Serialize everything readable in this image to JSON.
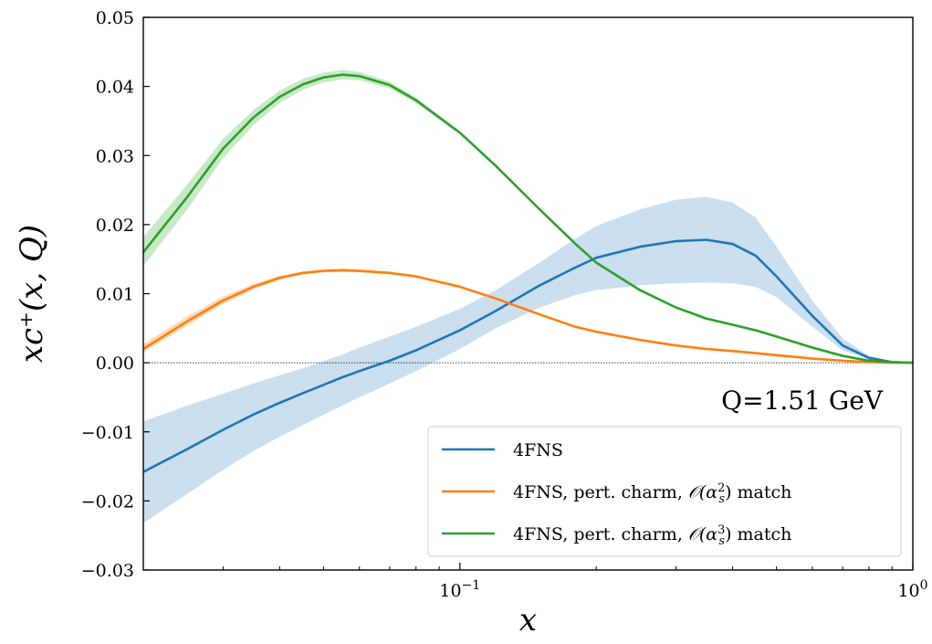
{
  "chart_data": {
    "type": "line",
    "xlabel": "x",
    "ylabel": "xc⁺(x, Q)",
    "x_scale": "log",
    "xlim": [
      0.02,
      1.0
    ],
    "ylim": [
      -0.03,
      0.05
    ],
    "y_ticks": [
      -0.03,
      -0.02,
      -0.01,
      0.0,
      0.01,
      0.02,
      0.03,
      0.04,
      0.05
    ],
    "y_tick_labels": [
      "−0.03",
      "−0.02",
      "−0.01",
      "0.00",
      "0.01",
      "0.02",
      "0.03",
      "0.04",
      "0.05"
    ],
    "x_ticks": [
      0.1,
      1.0
    ],
    "x_tick_labels": [
      {
        "base": "10",
        "exp": "−1"
      },
      {
        "base": "10",
        "exp": "0"
      }
    ],
    "annotation": "Q=1.51 GeV",
    "zero_line": true,
    "legend_position": "lower-right",
    "x": [
      0.02,
      0.025,
      0.03,
      0.035,
      0.04,
      0.045,
      0.05,
      0.055,
      0.06,
      0.07,
      0.08,
      0.1,
      0.12,
      0.15,
      0.18,
      0.2,
      0.25,
      0.3,
      0.35,
      0.4,
      0.45,
      0.5,
      0.6,
      0.7,
      0.8,
      0.9,
      1.0
    ],
    "series": [
      {
        "name": "4FNS",
        "color": "#1f77b4",
        "band_color": "#c5dbed",
        "values": [
          -0.0158,
          -0.0125,
          -0.0097,
          -0.0075,
          -0.0058,
          -0.0044,
          -0.0032,
          -0.0021,
          -0.0012,
          0.0003,
          0.0018,
          0.0047,
          0.0075,
          0.0112,
          0.0138,
          0.0152,
          0.0168,
          0.0176,
          0.0178,
          0.0172,
          0.0155,
          0.0125,
          0.0068,
          0.0025,
          0.0007,
          0.0001,
          0.0
        ],
        "lower": [
          -0.0232,
          -0.019,
          -0.0155,
          -0.0128,
          -0.0107,
          -0.009,
          -0.0075,
          -0.0062,
          -0.005,
          -0.003,
          -0.0012,
          0.002,
          0.005,
          0.008,
          0.0098,
          0.0105,
          0.0112,
          0.0115,
          0.0116,
          0.0115,
          0.011,
          0.0095,
          0.0052,
          0.0018,
          0.0005,
          0.0001,
          0.0
        ],
        "upper": [
          -0.0085,
          -0.0062,
          -0.0045,
          -0.003,
          -0.0018,
          -0.0008,
          0.0002,
          0.0012,
          0.0022,
          0.0038,
          0.0052,
          0.0078,
          0.0105,
          0.0145,
          0.018,
          0.0198,
          0.0222,
          0.0236,
          0.024,
          0.0232,
          0.021,
          0.0168,
          0.009,
          0.0035,
          0.001,
          0.0002,
          0.0
        ]
      },
      {
        "name": "4FNS, pert. charm, 𝒪(αₛ²) match",
        "legend_main": "4FNS, pert. charm, ",
        "legend_order": "2",
        "legend_suffix": " match",
        "color": "#ff7f0e",
        "band_color": "#ffd3ae",
        "values": [
          0.002,
          0.006,
          0.009,
          0.011,
          0.0123,
          0.013,
          0.0133,
          0.0134,
          0.0133,
          0.013,
          0.0125,
          0.011,
          0.0093,
          0.007,
          0.0052,
          0.0045,
          0.0033,
          0.0025,
          0.002,
          0.0017,
          0.0014,
          0.0011,
          0.0006,
          0.0003,
          0.0001,
          0.0,
          0.0
        ],
        "lower": [
          0.0015,
          0.0054,
          0.0085,
          0.0106,
          0.012,
          0.0128,
          0.0131,
          0.0132,
          0.0131,
          0.0128,
          0.0124,
          0.0109,
          0.0092,
          0.0069,
          0.0051,
          0.0044,
          0.0032,
          0.0024,
          0.0019,
          0.0016,
          0.0013,
          0.001,
          0.0005,
          0.0002,
          0.0001,
          0.0,
          0.0
        ],
        "upper": [
          0.0027,
          0.0067,
          0.0096,
          0.0114,
          0.0126,
          0.0132,
          0.0135,
          0.0136,
          0.0135,
          0.0132,
          0.0126,
          0.0111,
          0.0094,
          0.0071,
          0.0053,
          0.0046,
          0.0034,
          0.0026,
          0.0021,
          0.0018,
          0.0015,
          0.0012,
          0.0007,
          0.0004,
          0.0002,
          0.0,
          0.0
        ]
      },
      {
        "name": "4FNS, pert. charm, 𝒪(αₛ³) match",
        "legend_main": "4FNS, pert. charm, ",
        "legend_order": "3",
        "legend_suffix": " match",
        "color": "#2ca02c",
        "band_color": "#c3e6c1",
        "values": [
          0.016,
          0.024,
          0.031,
          0.0355,
          0.0385,
          0.0403,
          0.0413,
          0.0417,
          0.0415,
          0.0402,
          0.038,
          0.0333,
          0.0285,
          0.0222,
          0.0172,
          0.0145,
          0.0105,
          0.008,
          0.0064,
          0.0055,
          0.0047,
          0.0038,
          0.0022,
          0.001,
          0.0003,
          0.0001,
          0.0
        ],
        "lower": [
          0.014,
          0.0222,
          0.0296,
          0.0344,
          0.0376,
          0.0395,
          0.0406,
          0.041,
          0.0409,
          0.0397,
          0.0376,
          0.0331,
          0.0283,
          0.0221,
          0.0171,
          0.0144,
          0.0104,
          0.0079,
          0.0063,
          0.0054,
          0.0046,
          0.0037,
          0.0021,
          0.0009,
          0.0003,
          0.0001,
          0.0
        ],
        "upper": [
          0.0182,
          0.0258,
          0.0324,
          0.0366,
          0.0394,
          0.0411,
          0.042,
          0.0424,
          0.0421,
          0.0407,
          0.0384,
          0.0335,
          0.0287,
          0.0223,
          0.0173,
          0.0146,
          0.0106,
          0.0081,
          0.0065,
          0.0056,
          0.0048,
          0.0039,
          0.0023,
          0.0011,
          0.0004,
          0.0001,
          0.0
        ]
      }
    ]
  }
}
